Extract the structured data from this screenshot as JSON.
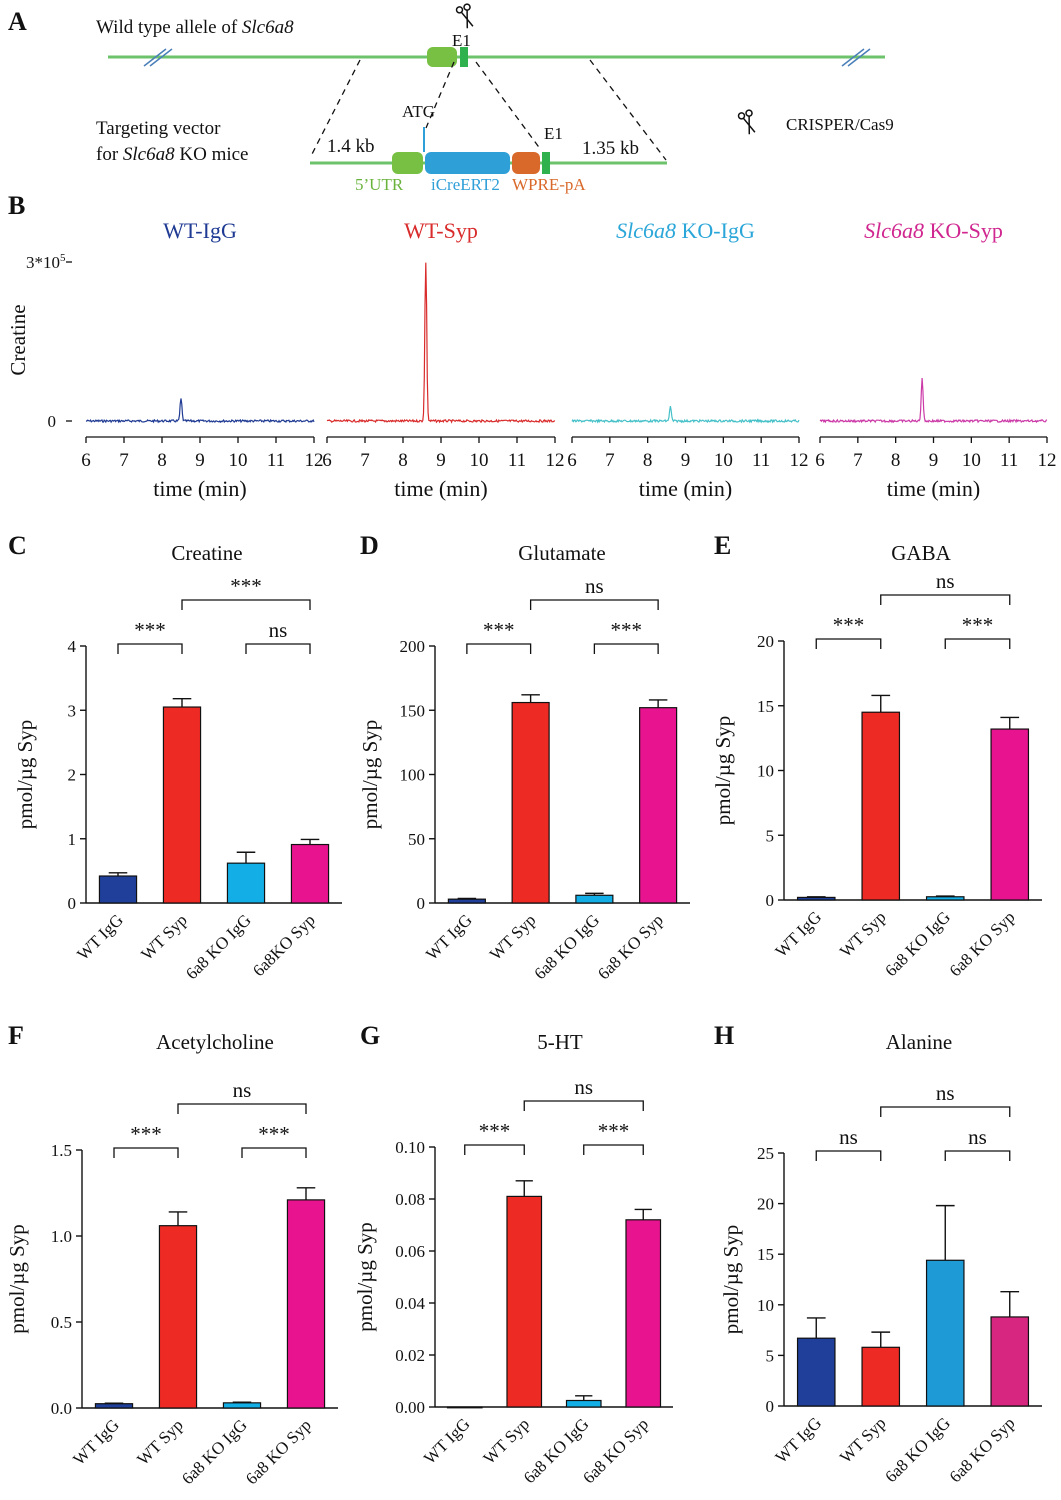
{
  "panel_letters": [
    "A",
    "B",
    "C",
    "D",
    "E",
    "F",
    "G",
    "H"
  ],
  "panelA": {
    "wt_label_prefix": "Wild type allele of ",
    "gene": "Slc6a8",
    "e1_top": "E1",
    "vector_line1": "Targeting vector",
    "vector_line2_prefix": "for ",
    "vector_line2_suffix": " KO mice",
    "atg": "ATG",
    "left_arm": "1.4 kb",
    "right_arm": "1.35 kb",
    "e1_bottom": "E1",
    "utr": "5’UTR",
    "icre": "iCreERT2",
    "wpre": "WPRE-pA",
    "crispr": "CRISPER/Cas9",
    "colors": {
      "line": "#6cc36b",
      "utr": "#77c043",
      "icre": "#2f9fd8",
      "wpre": "#d9692b",
      "e1": "#2fb24d",
      "atg": "#2f9fd8"
    }
  },
  "panelB": {
    "ylabel": "Creatine",
    "ymax_label": "3*10",
    "ymax_exp": "5",
    "yzero_label": "0",
    "xlabel": "time (min)",
    "xticks": [
      6,
      7,
      8,
      9,
      10,
      11,
      12
    ],
    "traces": [
      {
        "title": "WT-IgG",
        "title_italic": "",
        "color": "#1f3a93",
        "title_color": "#1f3a93",
        "peak_time": 8.5,
        "peak_height": 0.14
      },
      {
        "title": "WT-Syp",
        "title_italic": "",
        "color": "#d92b2b",
        "title_color": "#d92b2b",
        "peak_time": 8.6,
        "peak_height": 1.0
      },
      {
        "title": " KO-IgG",
        "title_italic": "Slc6a8",
        "color": "#45c0c8",
        "title_color": "#2aa6d8",
        "peak_time": 8.6,
        "peak_height": 0.09
      },
      {
        "title": " KO-Syp",
        "title_italic": "Slc6a8",
        "color": "#cc3aa8",
        "title_color": "#d0268f",
        "peak_time": 8.7,
        "peak_height": 0.27
      }
    ]
  },
  "chart_data": [
    {
      "type": "bar",
      "panel": "C",
      "title": "Creatine",
      "ylabel": "pmol/µg Syp",
      "ylim": [
        0,
        4
      ],
      "yticks": [
        "0",
        "1",
        "2",
        "3",
        "4"
      ],
      "categories": [
        "WT IgG",
        "WT Syp",
        "6a8 KO IgG",
        "6a8KO Syp"
      ],
      "values": [
        0.42,
        3.05,
        0.62,
        0.91
      ],
      "errors": [
        0.05,
        0.13,
        0.17,
        0.08
      ],
      "colors": [
        "#1f3f9a",
        "#ee2a24",
        "#13aee6",
        "#e8138f"
      ],
      "comparisons": [
        {
          "a": 0,
          "b": 1,
          "label": "***"
        },
        {
          "a": 2,
          "b": 3,
          "label": "ns"
        },
        {
          "a": 1,
          "b": 3,
          "label": "***"
        }
      ]
    },
    {
      "type": "bar",
      "panel": "D",
      "title": "Glutamate",
      "ylabel": "pmol/µg Syp",
      "ylim": [
        0,
        200
      ],
      "yticks": [
        "0",
        "50",
        "100",
        "150",
        "200"
      ],
      "categories": [
        "WT IgG",
        "WT Syp",
        "6a8 KO IgG",
        "6a8 KO Syp"
      ],
      "values": [
        3,
        156,
        6,
        152
      ],
      "errors": [
        0.5,
        6,
        1.5,
        6
      ],
      "colors": [
        "#1f3f9a",
        "#ee2a24",
        "#13aee6",
        "#e8138f"
      ],
      "comparisons": [
        {
          "a": 0,
          "b": 1,
          "label": "***"
        },
        {
          "a": 2,
          "b": 3,
          "label": "***"
        },
        {
          "a": 1,
          "b": 3,
          "label": "ns"
        }
      ]
    },
    {
      "type": "bar",
      "panel": "E",
      "title": "GABA",
      "ylabel": "pmol/µg Syp",
      "ylim": [
        0,
        20
      ],
      "yticks": [
        "0",
        "5",
        "10",
        "15",
        "20"
      ],
      "categories": [
        "WT IgG",
        "WT Syp",
        "6a8 KO IgG",
        "6a8 KO Syp"
      ],
      "values": [
        0.2,
        14.5,
        0.25,
        13.2
      ],
      "errors": [
        0.05,
        1.3,
        0.05,
        0.9
      ],
      "colors": [
        "#1f3f9a",
        "#ee2a24",
        "#13aee6",
        "#e8138f"
      ],
      "comparisons": [
        {
          "a": 0,
          "b": 1,
          "label": "***"
        },
        {
          "a": 2,
          "b": 3,
          "label": "***"
        },
        {
          "a": 1,
          "b": 3,
          "label": "ns"
        }
      ]
    },
    {
      "type": "bar",
      "panel": "F",
      "title": "Acetylcholine",
      "ylabel": "pmol/µg Syp",
      "ylim": [
        0,
        1.5
      ],
      "yticks": [
        "0.0",
        "0.5",
        "1.0",
        "1.5"
      ],
      "categories": [
        "WT IgG",
        "WT Syp",
        "6a8 KO IgG",
        "6a8 KO Syp"
      ],
      "values": [
        0.025,
        1.06,
        0.03,
        1.21
      ],
      "errors": [
        0.003,
        0.08,
        0.004,
        0.07
      ],
      "colors": [
        "#1f3f9a",
        "#ee2a24",
        "#13aee6",
        "#e8138f"
      ],
      "comparisons": [
        {
          "a": 0,
          "b": 1,
          "label": "***"
        },
        {
          "a": 2,
          "b": 3,
          "label": "***"
        },
        {
          "a": 1,
          "b": 3,
          "label": "ns"
        }
      ]
    },
    {
      "type": "bar",
      "panel": "G",
      "title": "5-HT",
      "ylabel": "pmol/µg Syp",
      "ylim": [
        0,
        0.1
      ],
      "yticks": [
        "0.00",
        "0.02",
        "0.04",
        "0.06",
        "0.08",
        "0.10"
      ],
      "categories": [
        "WT IgG",
        "WT Syp",
        "6a8 KO IgG",
        "6a8 KO Syp"
      ],
      "values": [
        0,
        0.081,
        0.0025,
        0.072
      ],
      "errors": [
        0,
        0.006,
        0.0018,
        0.004
      ],
      "colors": [
        "#1f3f9a",
        "#ee2a24",
        "#13aee6",
        "#e8138f"
      ],
      "comparisons": [
        {
          "a": 0,
          "b": 1,
          "label": "***"
        },
        {
          "a": 2,
          "b": 3,
          "label": "***"
        },
        {
          "a": 1,
          "b": 3,
          "label": "ns"
        }
      ]
    },
    {
      "type": "bar",
      "panel": "H",
      "title": "Alanine",
      "ylabel": "pmol/µg Syp",
      "ylim": [
        0,
        25
      ],
      "yticks": [
        "0",
        "5",
        "10",
        "15",
        "20",
        "25"
      ],
      "categories": [
        "WT IgG",
        "WT Syp",
        "6a8 KO IgG",
        "6a8 KO Syp"
      ],
      "values": [
        6.7,
        5.8,
        14.4,
        8.8
      ],
      "errors": [
        2.0,
        1.5,
        5.4,
        2.5
      ],
      "colors": [
        "#1f3f9a",
        "#ee2a24",
        "#1e9bd7",
        "#d6267f"
      ],
      "comparisons": [
        {
          "a": 0,
          "b": 1,
          "label": "ns"
        },
        {
          "a": 2,
          "b": 3,
          "label": "ns"
        },
        {
          "a": 1,
          "b": 3,
          "label": "ns"
        }
      ]
    }
  ]
}
